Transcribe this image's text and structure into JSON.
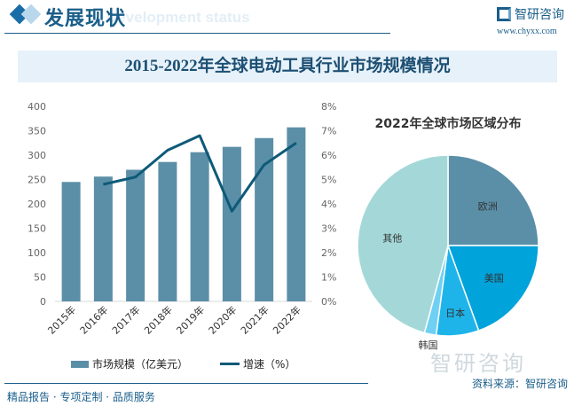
{
  "header": {
    "section_title": "发展现状",
    "section_subtitle": "Development status",
    "logo_text": "智研咨询",
    "website": "www.chyxx.com"
  },
  "banner_title": "2015-2022年全球电动工具行业市场规模情况",
  "footer": {
    "slogan": "精品报告 · 专项定制 · 品质服务",
    "source": "资料来源：智研咨询",
    "watermark": "智研咨询"
  },
  "colors": {
    "bar": "#5b8fa8",
    "line": "#0e5a78",
    "accent": "#1a5e8a"
  },
  "chart_data": [
    {
      "type": "bar+line",
      "categories": [
        "2015年",
        "2016年",
        "2017年",
        "2018年",
        "2019年",
        "2020年",
        "2021年",
        "2022年"
      ],
      "series": [
        {
          "name": "市场规模（亿美元）",
          "type": "bar",
          "axis": "left",
          "values": [
            245,
            256,
            270,
            286,
            306,
            317,
            335,
            357
          ]
        },
        {
          "name": "增速（%）",
          "type": "line",
          "axis": "right",
          "values": [
            null,
            4.8,
            5.1,
            6.2,
            6.8,
            3.7,
            5.6,
            6.5
          ]
        }
      ],
      "yleft": {
        "lim": [
          0,
          400
        ],
        "ticks": [
          "0",
          "50",
          "100",
          "150",
          "200",
          "250",
          "300",
          "350",
          "400"
        ]
      },
      "yright": {
        "lim": [
          0,
          8
        ],
        "ticks": [
          "0%",
          "1%",
          "2%",
          "3%",
          "4%",
          "5%",
          "6%",
          "7%",
          "8%"
        ]
      },
      "legend": "bottom",
      "grid": false
    },
    {
      "type": "pie",
      "title": "2022年全球市场区域分布",
      "labels": [
        "欧洲",
        "美国",
        "日本",
        "韩国",
        "其他"
      ],
      "values": [
        25,
        19.5,
        7.6,
        2.1,
        45.8
      ],
      "colors": [
        "#5b8fa8",
        "#00a3da",
        "#1eb4ea",
        "#6fd0f3",
        "#a4d8d8"
      ]
    }
  ]
}
